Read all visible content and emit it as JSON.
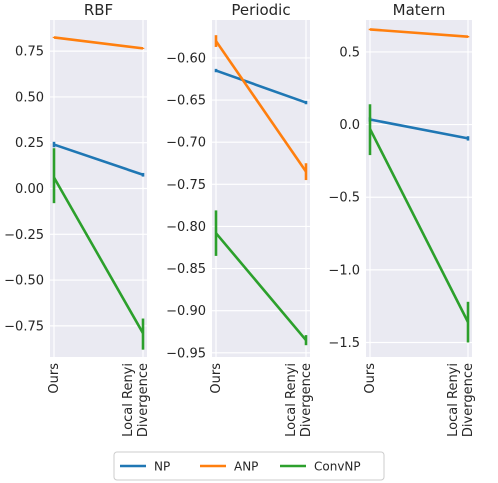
{
  "chart_data": {
    "type": "line",
    "categories": [
      "Ours",
      "Local Renyi Divergence"
    ],
    "legend": {
      "placement": "bottom-center",
      "entries": [
        "NP",
        "ANP",
        "ConvNP"
      ]
    },
    "colors": {
      "NP": "#1f77b4",
      "ANP": "#ff7f0e",
      "ConvNP": "#2ca02c",
      "grid": "#ffffff",
      "panel_bg": "#eaeaf2"
    },
    "panels": [
      {
        "title": "RBF",
        "ylim": [
          -0.92,
          0.92
        ],
        "yticks": [
          0.75,
          0.5,
          0.25,
          0.0,
          -0.25,
          -0.5,
          -0.75
        ],
        "ytick_labels": [
          "0.75",
          "0.50",
          "0.25",
          "0.00",
          "−0.25",
          "−0.50",
          "−0.75"
        ],
        "series": [
          {
            "name": "NP",
            "values": [
              0.24,
              0.075
            ],
            "err": [
              [
                0.225,
                0.255
              ],
              [
                0.065,
                0.085
              ]
            ]
          },
          {
            "name": "ANP",
            "values": [
              0.825,
              0.765
            ],
            "err": [
              [
                0.822,
                0.828
              ],
              [
                0.762,
                0.768
              ]
            ]
          },
          {
            "name": "ConvNP",
            "values": [
              0.06,
              -0.79
            ],
            "err": [
              [
                -0.08,
                0.22
              ],
              [
                -0.88,
                -0.71
              ]
            ]
          }
        ]
      },
      {
        "title": "Periodic",
        "ylim": [
          -0.955,
          -0.555
        ],
        "yticks": [
          -0.6,
          -0.65,
          -0.7,
          -0.75,
          -0.8,
          -0.85,
          -0.9,
          -0.95
        ],
        "ytick_labels": [
          "−0.60",
          "−0.65",
          "−0.70",
          "−0.75",
          "−0.80",
          "−0.85",
          "−0.90",
          "−0.95"
        ],
        "series": [
          {
            "name": "NP",
            "values": [
              -0.615,
              -0.653
            ],
            "err": [
              [
                -0.617,
                -0.613
              ],
              [
                -0.655,
                -0.651
              ]
            ]
          },
          {
            "name": "ANP",
            "values": [
              -0.58,
              -0.735
            ],
            "err": [
              [
                -0.587,
                -0.573
              ],
              [
                -0.745,
                -0.725
              ]
            ]
          },
          {
            "name": "ConvNP",
            "values": [
              -0.808,
              -0.935
            ],
            "err": [
              [
                -0.835,
                -0.781
              ],
              [
                -0.941,
                -0.929
              ]
            ]
          }
        ]
      },
      {
        "title": "Matern",
        "ylim": [
          -1.6,
          0.72
        ],
        "yticks": [
          0.5,
          0.0,
          -0.5,
          -1.0,
          -1.5
        ],
        "ytick_labels": [
          "0.5",
          "0.0",
          "−0.5",
          "−1.0",
          "−1.5"
        ],
        "series": [
          {
            "name": "NP",
            "values": [
              0.035,
              -0.095
            ],
            "err": [
              [
                0.02,
                0.05
              ],
              [
                -0.11,
                -0.08
              ]
            ]
          },
          {
            "name": "ANP",
            "values": [
              0.655,
              0.605
            ],
            "err": [
              [
                0.65,
                0.66
              ],
              [
                0.6,
                0.61
              ]
            ]
          },
          {
            "name": "ConvNP",
            "values": [
              -0.03,
              -1.36
            ],
            "err": [
              [
                -0.21,
                0.14
              ],
              [
                -1.5,
                -1.22
              ]
            ]
          }
        ]
      }
    ]
  }
}
